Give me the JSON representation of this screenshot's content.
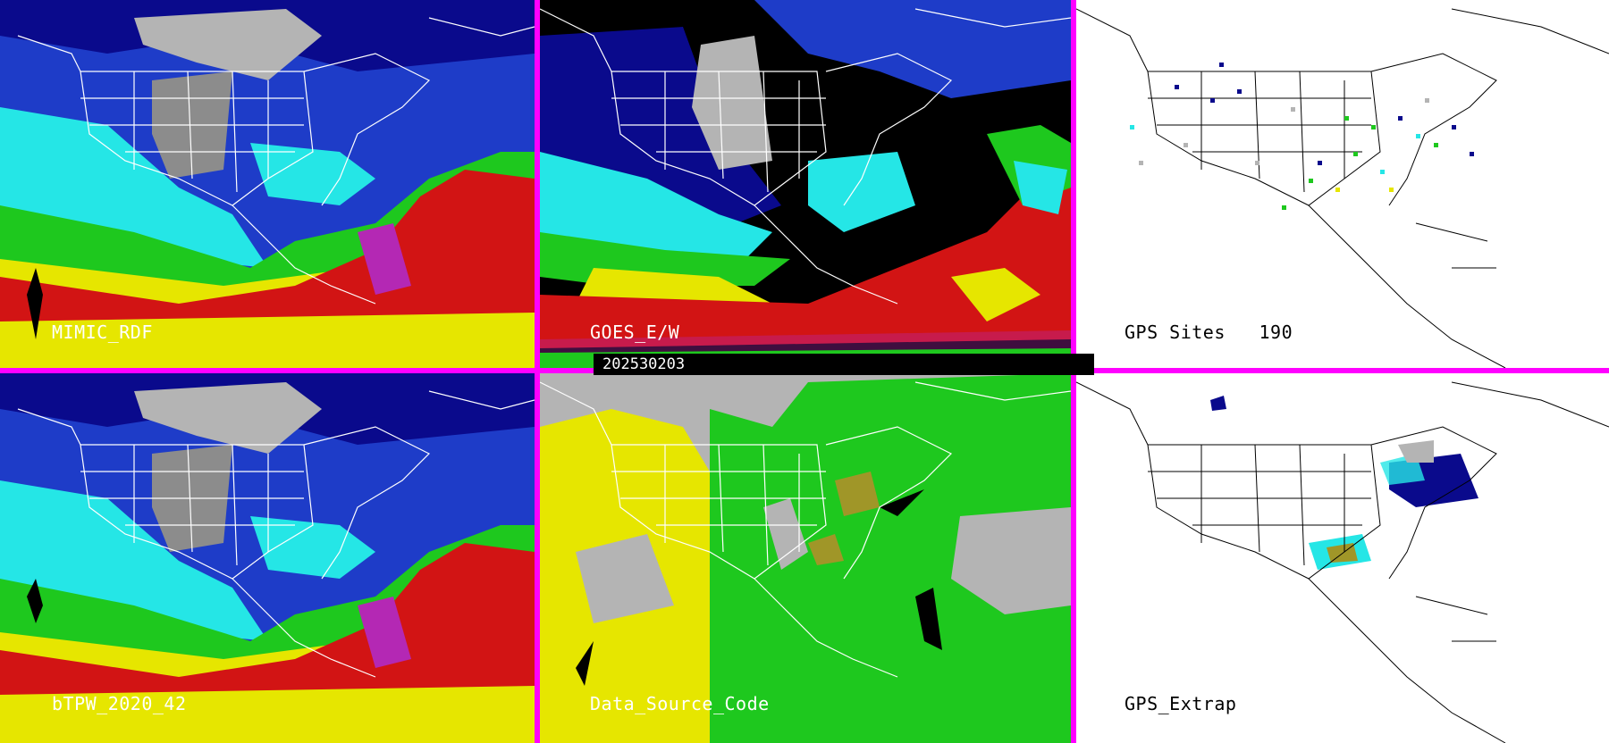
{
  "panels": {
    "p1": {
      "label": "MIMIC_RDF"
    },
    "p2": {
      "label": "GOES_E/W"
    },
    "p3": {
      "label": "GPS Sites   190"
    },
    "p4": {
      "label": "bTPW_2020_42"
    },
    "p5": {
      "label": "Data_Source_Code"
    },
    "p6": {
      "label": "GPS_Extrap"
    }
  },
  "timestamp": "202530203",
  "colors": {
    "separator": "#ff00ff",
    "deep_blue": "#0a0a8c",
    "blue": "#1e3cc8",
    "cyan": "#25e6e6",
    "green": "#1ec81e",
    "yellow": "#e6e600",
    "red": "#d21414",
    "magenta": "#b428b4",
    "gray": "#b4b4b4",
    "black": "#000000",
    "white": "#ffffff",
    "olive": "#a09628"
  }
}
